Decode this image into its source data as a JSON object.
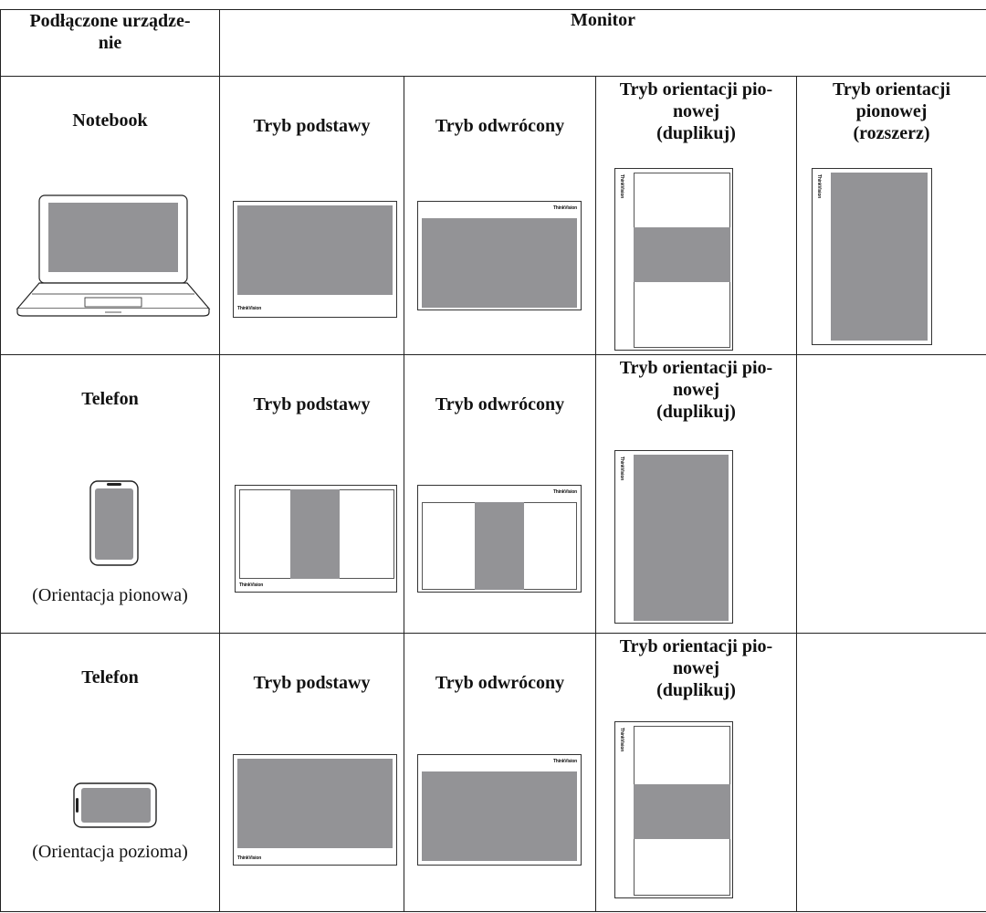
{
  "header": {
    "device_col": "Podłączone urządze-\nnie",
    "monitor_col": "Monitor"
  },
  "rows": [
    {
      "device": "Notebook",
      "caption": "",
      "modes": [
        "Tryb podstawy",
        "Tryb odwrócony",
        "Tryb orientacji pio-\nnowej\n(duplikuj)",
        "Tryb orientacji\npionowej\n(rozszerz)"
      ]
    },
    {
      "device": "Telefon",
      "caption": "(Orientacja pionowa)",
      "modes": [
        "Tryb podstawy",
        "Tryb odwrócony",
        "Tryb orientacji pio-\nnowej\n(duplikuj)"
      ]
    },
    {
      "device": "Telefon",
      "caption": "(Orientacja pozioma)",
      "modes": [
        "Tryb podstawy",
        "Tryb odwrócony",
        "Tryb orientacji pio-\nnowej\n(duplikuj)"
      ]
    }
  ],
  "colors": {
    "screen_fill": "#939396",
    "line": "#222222"
  }
}
